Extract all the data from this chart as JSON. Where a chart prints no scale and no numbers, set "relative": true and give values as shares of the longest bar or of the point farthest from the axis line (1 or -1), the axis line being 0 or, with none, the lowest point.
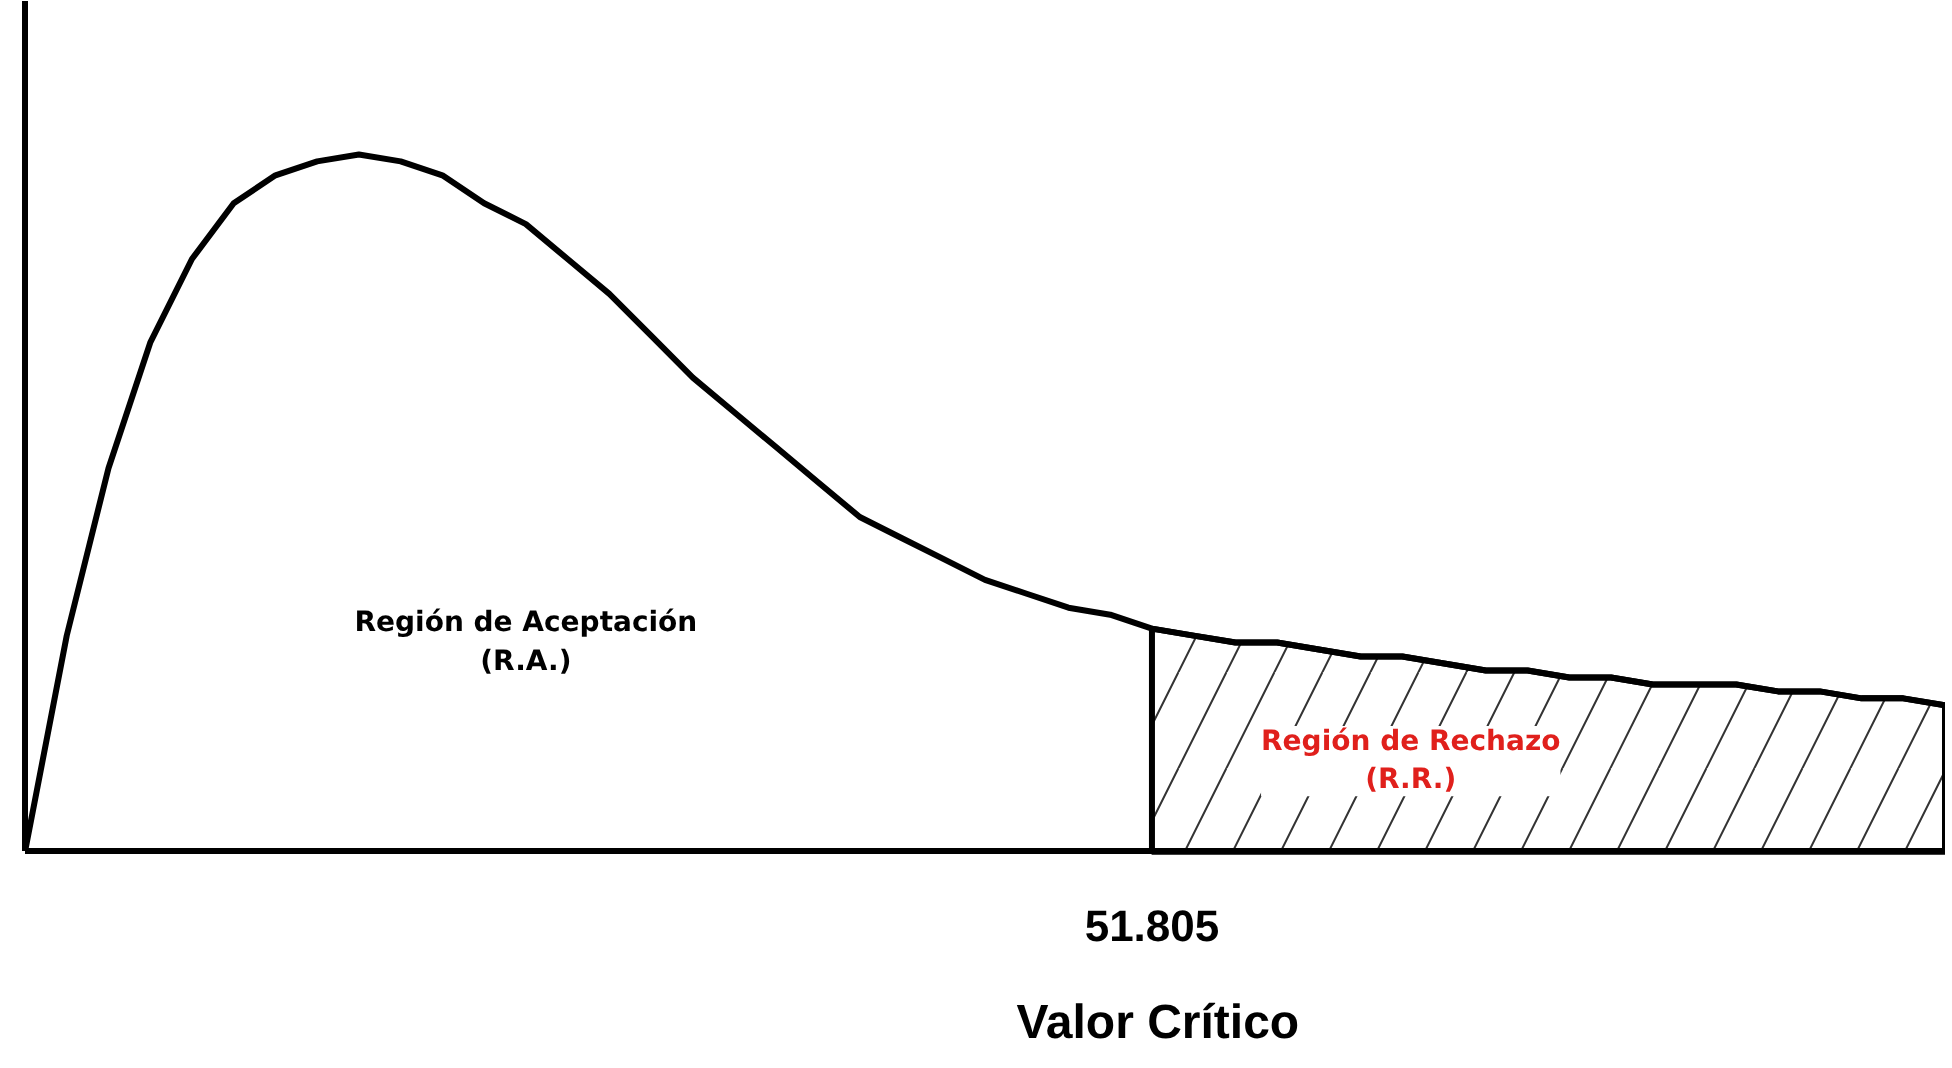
{
  "chart_data": {
    "type": "line",
    "relative": true,
    "xlabel": "Valor Crítico",
    "grid": false,
    "marker": "none",
    "line_style": "solid",
    "categories": [
      null,
      null,
      null,
      null,
      null,
      null,
      null,
      null,
      null,
      null,
      null,
      null,
      null,
      null,
      null,
      null,
      null,
      null,
      null,
      null,
      null,
      null,
      null,
      null,
      null,
      null,
      null,
      null,
      null,
      null,
      null,
      null,
      null,
      null,
      null,
      null,
      null,
      null,
      null,
      null,
      null,
      null,
      null,
      null,
      null,
      null,
      null
    ],
    "series": [
      {
        "color": "#000000",
        "values": [
          0,
          0.31,
          0.55,
          0.73,
          0.85,
          0.93,
          0.97,
          0.99,
          1.0,
          0.99,
          0.97,
          0.93,
          0.9,
          0.85,
          0.8,
          0.74,
          0.68,
          0.63,
          0.58,
          0.53,
          0.48,
          0.45,
          0.42,
          0.39,
          0.37,
          0.35,
          0.34,
          0.32,
          0.31,
          0.3,
          0.3,
          0.29,
          0.28,
          0.28,
          0.27,
          0.26,
          0.26,
          0.25,
          0.25,
          0.24,
          0.24,
          0.24,
          0.23,
          0.23,
          0.22,
          0.22,
          0.21
        ]
      },
      {
        "type": "area",
        "color": "#000000",
        "values": [
          null,
          null,
          null,
          null,
          null,
          null,
          null,
          null,
          null,
          null,
          null,
          null,
          null,
          null,
          null,
          null,
          null,
          null,
          null,
          null,
          null,
          null,
          null,
          null,
          null,
          null,
          null,
          0.32,
          0.31,
          0.3,
          0.3,
          0.29,
          0.28,
          0.28,
          0.27,
          0.26,
          0.26,
          0.25,
          0.25,
          0.24,
          0.24,
          0.24,
          0.23,
          0.23,
          0.22,
          0.22,
          0.21
        ]
      }
    ],
    "annotations": [
      "Región de Aceptación\n(R.A.)",
      "Región de Rechazo\n(R.R.)",
      "51.805"
    ]
  }
}
